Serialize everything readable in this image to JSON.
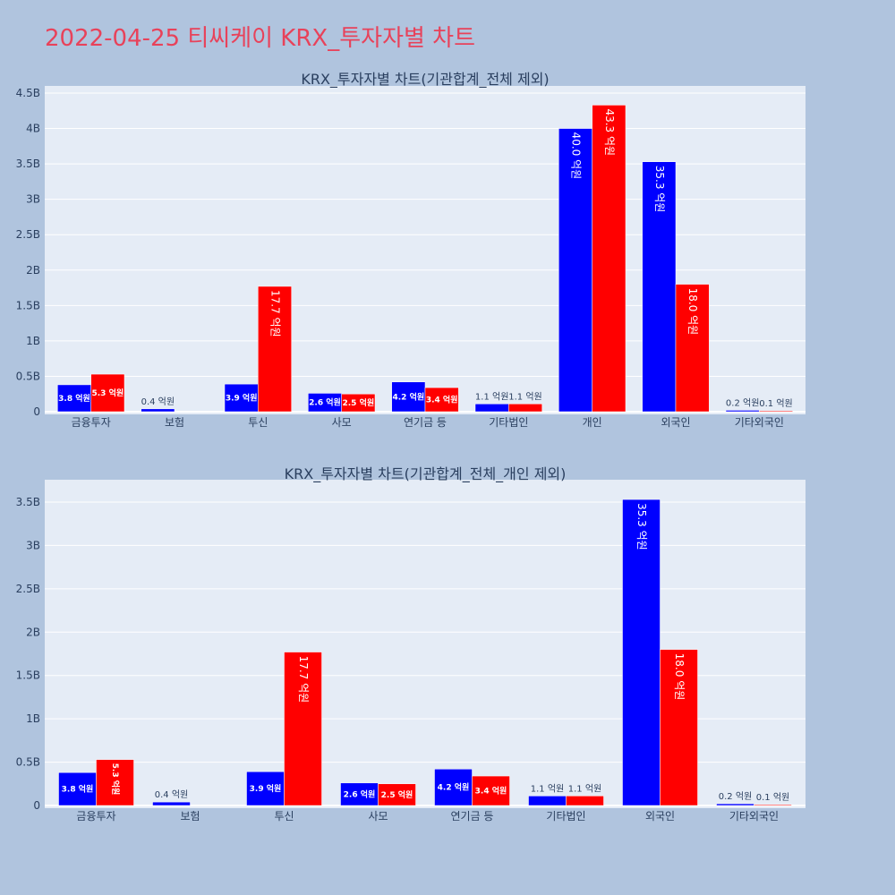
{
  "title": "2022-04-25 티씨케이 KRX_투자자별 차트",
  "colors": {
    "background": "#b0c4de",
    "plot_bg": "#e5ecf6",
    "title": "#e8425a",
    "buy": "#0000ff",
    "sell": "#ff0000"
  },
  "chart_data": [
    {
      "type": "bar",
      "title": "KRX_투자자별 차트(기관합계_전체 제외)",
      "categories": [
        "금융투자",
        "보험",
        "투신",
        "사모",
        "연기금 등",
        "기타법인",
        "개인",
        "외국인",
        "기타외국인"
      ],
      "series": [
        {
          "color": "#0000ff",
          "values": [
            380000000,
            40000000,
            390000000,
            260000000,
            420000000,
            110000000,
            4000000000,
            3530000000,
            20000000
          ],
          "labels": [
            "3.8 억원",
            "0.4 억원",
            "3.9 억원",
            "2.6 억원",
            "4.2 억원",
            "1.1 억원",
            "40.0 억원",
            "35.3 억원",
            "0.2 억원"
          ]
        },
        {
          "color": "#ff0000",
          "values": [
            530000000,
            0,
            1770000000,
            250000000,
            340000000,
            110000000,
            4330000000,
            1800000000,
            10000000
          ],
          "labels": [
            "5.3 억원",
            "",
            "17.7 억원",
            "2.5 억원",
            "3.4 억원",
            "1.1 억원",
            "43.3 억원",
            "18.0 억원",
            "0.1 억원"
          ]
        }
      ],
      "yticks": [
        0,
        500000000,
        1000000000,
        1500000000,
        2000000000,
        2500000000,
        3000000000,
        3500000000,
        4000000000,
        4500000000
      ],
      "ytick_labels": [
        "0",
        "0.5B",
        "1B",
        "1.5B",
        "2B",
        "2.5B",
        "3B",
        "3.5B",
        "4B",
        "4.5B"
      ],
      "ylim": [
        0,
        4550000000
      ],
      "grid": true
    },
    {
      "type": "bar",
      "title": "KRX_투자자별 차트(기관합계_전체_개인 제외)",
      "categories": [
        "금융투자",
        "보험",
        "투신",
        "사모",
        "연기금 등",
        "기타법인",
        "외국인",
        "기타외국인"
      ],
      "series": [
        {
          "color": "#0000ff",
          "values": [
            380000000,
            40000000,
            390000000,
            260000000,
            420000000,
            110000000,
            3530000000,
            20000000
          ],
          "labels": [
            "3.8 억원",
            "0.4 억원",
            "3.9 억원",
            "2.6 억원",
            "4.2 억원",
            "1.1 억원",
            "35.3 억원",
            "0.2 억원"
          ]
        },
        {
          "color": "#ff0000",
          "values": [
            530000000,
            0,
            1770000000,
            250000000,
            340000000,
            110000000,
            1800000000,
            10000000
          ],
          "labels": [
            "5.3 억원",
            "",
            "17.7 억원",
            "2.5 억원",
            "3.4 억원",
            "1.1 억원",
            "18.0 억원",
            "0.1 억원"
          ]
        }
      ],
      "yticks": [
        0,
        500000000,
        1000000000,
        1500000000,
        2000000000,
        2500000000,
        3000000000,
        3500000000
      ],
      "ytick_labels": [
        "0",
        "0.5B",
        "1B",
        "1.5B",
        "2B",
        "2.5B",
        "3B",
        "3.5B"
      ],
      "ylim": [
        0,
        3750000000
      ],
      "grid": true
    }
  ]
}
